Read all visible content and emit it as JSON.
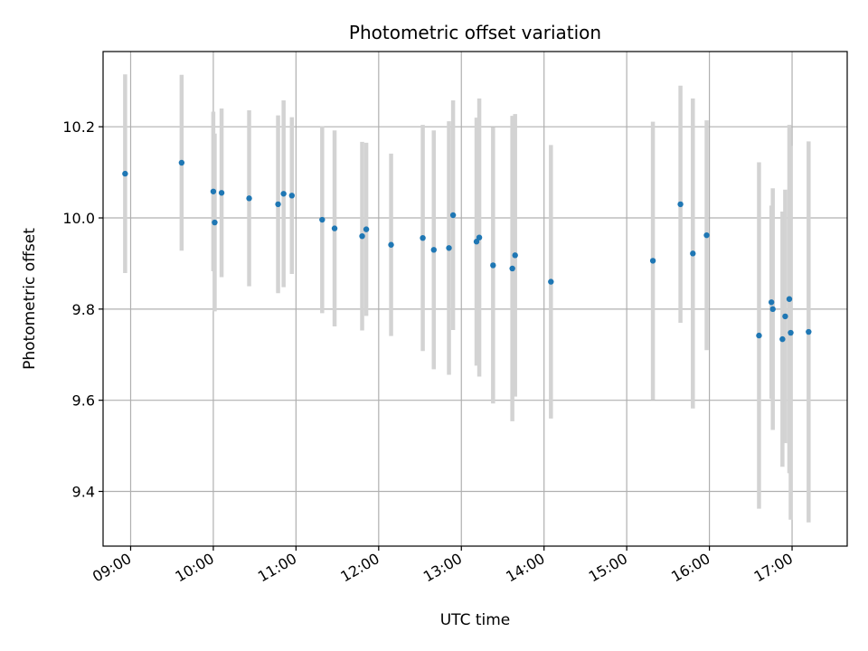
{
  "chart_data": {
    "type": "scatter",
    "title": "Photometric offset variation",
    "xlabel": "UTC time",
    "ylabel": "Photometric offset",
    "xlim": [
      "08:40",
      "17:40"
    ],
    "ylim": [
      9.28,
      10.365
    ],
    "x_ticks": [
      "09:00",
      "10:00",
      "11:00",
      "12:00",
      "13:00",
      "14:00",
      "15:00",
      "16:00",
      "17:00"
    ],
    "y_ticks": [
      "9.4",
      "9.6",
      "9.8",
      "10.0",
      "10.2"
    ],
    "grid": true,
    "marker_color": "#1f77b4",
    "errorbar_color": "#d3d3d3",
    "series": [
      {
        "points": [
          {
            "t": "08:56",
            "y": 10.097,
            "err": 0.218
          },
          {
            "t": "09:37",
            "y": 10.121,
            "err": 0.193
          },
          {
            "t": "10:00",
            "y": 10.058,
            "err": 0.175
          },
          {
            "t": "10:01",
            "y": 9.99,
            "err": 0.195
          },
          {
            "t": "10:06",
            "y": 10.055,
            "err": 0.185
          },
          {
            "t": "10:26",
            "y": 10.043,
            "err": 0.193
          },
          {
            "t": "10:47",
            "y": 10.03,
            "err": 0.195
          },
          {
            "t": "10:51",
            "y": 10.053,
            "err": 0.205
          },
          {
            "t": "10:57",
            "y": 10.049,
            "err": 0.172
          },
          {
            "t": "11:19",
            "y": 9.996,
            "err": 0.205
          },
          {
            "t": "11:28",
            "y": 9.977,
            "err": 0.215
          },
          {
            "t": "11:48",
            "y": 9.96,
            "err": 0.207
          },
          {
            "t": "11:51",
            "y": 9.975,
            "err": 0.19
          },
          {
            "t": "12:09",
            "y": 9.941,
            "err": 0.2
          },
          {
            "t": "12:32",
            "y": 9.956,
            "err": 0.248
          },
          {
            "t": "12:40",
            "y": 9.93,
            "err": 0.262
          },
          {
            "t": "12:51",
            "y": 9.934,
            "err": 0.278
          },
          {
            "t": "12:54",
            "y": 10.006,
            "err": 0.252
          },
          {
            "t": "13:11",
            "y": 9.948,
            "err": 0.272
          },
          {
            "t": "13:13",
            "y": 9.957,
            "err": 0.305
          },
          {
            "t": "13:23",
            "y": 9.896,
            "err": 0.303
          },
          {
            "t": "13:37",
            "y": 9.889,
            "err": 0.335
          },
          {
            "t": "13:39",
            "y": 9.918,
            "err": 0.31
          },
          {
            "t": "14:05",
            "y": 9.86,
            "err": 0.3
          },
          {
            "t": "15:19",
            "y": 9.906,
            "err": 0.305
          },
          {
            "t": "15:39",
            "y": 10.03,
            "err": 0.26
          },
          {
            "t": "15:48",
            "y": 9.922,
            "err": 0.34
          },
          {
            "t": "15:58",
            "y": 9.962,
            "err": 0.252
          },
          {
            "t": "16:36",
            "y": 9.742,
            "err": 0.38
          },
          {
            "t": "16:45",
            "y": 9.815,
            "err": 0.212
          },
          {
            "t": "16:46",
            "y": 9.8,
            "err": 0.265
          },
          {
            "t": "16:53",
            "y": 9.734,
            "err": 0.28
          },
          {
            "t": "16:55",
            "y": 9.784,
            "err": 0.278
          },
          {
            "t": "16:58",
            "y": 9.822,
            "err": 0.382
          },
          {
            "t": "16:59",
            "y": 9.748,
            "err": 0.41
          },
          {
            "t": "17:12",
            "y": 9.75,
            "err": 0.418
          }
        ]
      }
    ]
  }
}
